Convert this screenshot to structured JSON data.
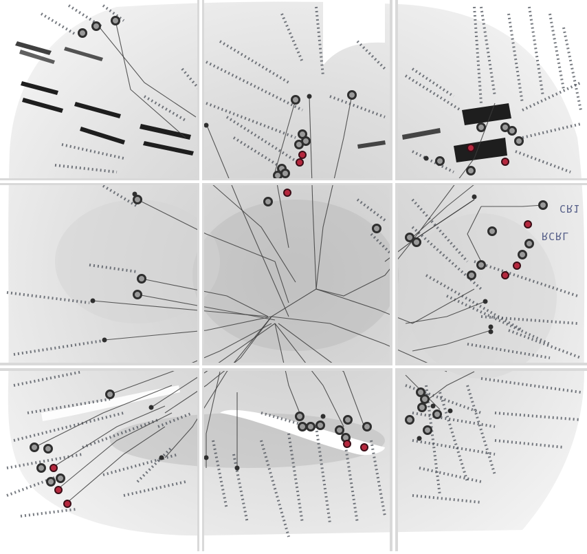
{
  "figure": {
    "theme": {
      "background": "#ffffff",
      "tissue_light": "#f1f1f1",
      "tissue_mid": "#cfcfcf",
      "tissue_dark": "#8a8a8a",
      "gap": "#d9d9d9",
      "tree_line": "#3c3c3c",
      "marker_black": "#2f2f2f",
      "marker_red": "#b5283e",
      "dot_text": "#4a4f58",
      "label_text": "#5a6270"
    },
    "labels": [
      {
        "id": "rcrl-label",
        "text": "RCRL"
      },
      {
        "id": "cr1-label",
        "text": "CR1"
      }
    ]
  }
}
